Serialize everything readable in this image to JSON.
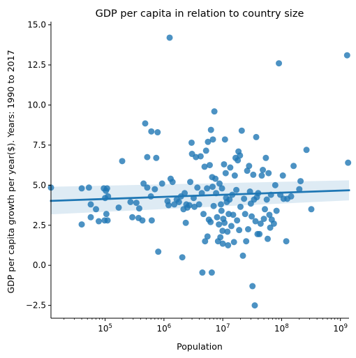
{
  "chart_data": {
    "type": "scatter",
    "title": "GDP per capita in relation to country size",
    "xlabel": "Population",
    "ylabel": "GDP per capita growth per year($). Years: 1990 to 2017",
    "x_scale": "log",
    "xlim": [
      12000,
      1400000000
    ],
    "ylim": [
      -3.3,
      15.2
    ],
    "yticks": [
      -2.5,
      0.0,
      2.5,
      5.0,
      7.5,
      10.0,
      12.5,
      15.0
    ],
    "ytick_labels": [
      "−2.5",
      "0.0",
      "2.5",
      "5.0",
      "7.5",
      "10.0",
      "12.5",
      "15.0"
    ],
    "xticks": [
      100000,
      1000000,
      10000000,
      100000000,
      1000000000
    ],
    "xtick_labels": [
      "10^5",
      "10^6",
      "10^7",
      "10^8",
      "10^9"
    ],
    "grid": false,
    "colors": {
      "points": "#1f77b4",
      "line": "#1f77b4",
      "band": "#1f77b4"
    },
    "regression": {
      "x": [
        12000,
        1400000000
      ],
      "y": [
        4.02,
        4.68
      ],
      "ci_low": [
        3.18,
        4.05
      ],
      "ci_high": [
        4.9,
        5.3
      ]
    },
    "points": [
      {
        "x": 12000,
        "y": 4.85
      },
      {
        "x": 40000,
        "y": 4.8
      },
      {
        "x": 40000,
        "y": 2.55
      },
      {
        "x": 53000,
        "y": 4.85
      },
      {
        "x": 57000,
        "y": 3.8
      },
      {
        "x": 57000,
        "y": 3.0
      },
      {
        "x": 70000,
        "y": 3.5
      },
      {
        "x": 78000,
        "y": 2.75
      },
      {
        "x": 95000,
        "y": 4.8
      },
      {
        "x": 98000,
        "y": 2.8
      },
      {
        "x": 100000,
        "y": 4.2
      },
      {
        "x": 103000,
        "y": 4.65
      },
      {
        "x": 105000,
        "y": 3.2
      },
      {
        "x": 108000,
        "y": 4.8
      },
      {
        "x": 112000,
        "y": 4.3
      },
      {
        "x": 110000,
        "y": 2.8
      },
      {
        "x": 170000,
        "y": 3.6
      },
      {
        "x": 195000,
        "y": 6.5
      },
      {
        "x": 270000,
        "y": 3.95
      },
      {
        "x": 290000,
        "y": 3.0
      },
      {
        "x": 340000,
        "y": 3.9
      },
      {
        "x": 370000,
        "y": 2.95
      },
      {
        "x": 380000,
        "y": 3.55
      },
      {
        "x": 430000,
        "y": 2.8
      },
      {
        "x": 450000,
        "y": 5.1
      },
      {
        "x": 480000,
        "y": 8.85
      },
      {
        "x": 520000,
        "y": 4.85
      },
      {
        "x": 520000,
        "y": 6.75
      },
      {
        "x": 600000,
        "y": 4.3
      },
      {
        "x": 610000,
        "y": 8.35
      },
      {
        "x": 620000,
        "y": 2.8
      },
      {
        "x": 700000,
        "y": 4.75
      },
      {
        "x": 740000,
        "y": 6.7
      },
      {
        "x": 780000,
        "y": 8.3
      },
      {
        "x": 800000,
        "y": 0.85
      },
      {
        "x": 930000,
        "y": 5.1
      },
      {
        "x": 1150000,
        "y": 4.0
      },
      {
        "x": 1200000,
        "y": 3.75
      },
      {
        "x": 1250000,
        "y": 14.2
      },
      {
        "x": 1300000,
        "y": 5.4
      },
      {
        "x": 1400000,
        "y": 5.2
      },
      {
        "x": 1500000,
        "y": 3.8
      },
      {
        "x": 1650000,
        "y": 4.1
      },
      {
        "x": 1800000,
        "y": 3.95
      },
      {
        "x": 1950000,
        "y": 4.3
      },
      {
        "x": 2050000,
        "y": 0.5
      },
      {
        "x": 2150000,
        "y": 3.5
      },
      {
        "x": 2250000,
        "y": 4.5
      },
      {
        "x": 2350000,
        "y": 2.65
      },
      {
        "x": 2400000,
        "y": 3.8
      },
      {
        "x": 2500000,
        "y": 3.6
      },
      {
        "x": 2700000,
        "y": 3.75
      },
      {
        "x": 2800000,
        "y": 5.2
      },
      {
        "x": 2950000,
        "y": 7.65
      },
      {
        "x": 3000000,
        "y": 6.95
      },
      {
        "x": 3200000,
        "y": 4.2
      },
      {
        "x": 3300000,
        "y": 3.65
      },
      {
        "x": 3500000,
        "y": 6.75
      },
      {
        "x": 3700000,
        "y": 4.85
      },
      {
        "x": 3950000,
        "y": 3.8
      },
      {
        "x": 4200000,
        "y": 6.8
      },
      {
        "x": 4400000,
        "y": 4.5
      },
      {
        "x": 4500000,
        "y": -0.45
      },
      {
        "x": 4700000,
        "y": 3.2
      },
      {
        "x": 4900000,
        "y": 6.15
      },
      {
        "x": 5000000,
        "y": 1.5
      },
      {
        "x": 5200000,
        "y": 7.15
      },
      {
        "x": 5400000,
        "y": 4.8
      },
      {
        "x": 5500000,
        "y": 1.8
      },
      {
        "x": 5600000,
        "y": 7.7
      },
      {
        "x": 5800000,
        "y": 2.85
      },
      {
        "x": 6000000,
        "y": 6.25
      },
      {
        "x": 6200000,
        "y": 2.7
      },
      {
        "x": 6300000,
        "y": 8.45
      },
      {
        "x": 6500000,
        "y": -0.45
      },
      {
        "x": 6600000,
        "y": 5.5
      },
      {
        "x": 6700000,
        "y": 4.9
      },
      {
        "x": 6800000,
        "y": 7.85
      },
      {
        "x": 7000000,
        "y": 3.7
      },
      {
        "x": 7200000,
        "y": 9.6
      },
      {
        "x": 7500000,
        "y": 5.4
      },
      {
        "x": 7700000,
        "y": 4.5
      },
      {
        "x": 8000000,
        "y": 3.0
      },
      {
        "x": 8300000,
        "y": 1.5
      },
      {
        "x": 8600000,
        "y": 2.55
      },
      {
        "x": 8800000,
        "y": 5.1
      },
      {
        "x": 9100000,
        "y": 1.75
      },
      {
        "x": 9300000,
        "y": 3.8
      },
      {
        "x": 9500000,
        "y": 3.4
      },
      {
        "x": 9700000,
        "y": 4.8
      },
      {
        "x": 9900000,
        "y": 2.15
      },
      {
        "x": 10000000,
        "y": 1.35
      },
      {
        "x": 10200000,
        "y": 2.9
      },
      {
        "x": 10500000,
        "y": 6.3
      },
      {
        "x": 10700000,
        "y": 2.65
      },
      {
        "x": 10900000,
        "y": 7.85
      },
      {
        "x": 11200000,
        "y": 5.75
      },
      {
        "x": 11400000,
        "y": 4.2
      },
      {
        "x": 11700000,
        "y": 3.95
      },
      {
        "x": 12000000,
        "y": 2.1
      },
      {
        "x": 12300000,
        "y": 1.25
      },
      {
        "x": 12600000,
        "y": 3.2
      },
      {
        "x": 13000000,
        "y": 4.1
      },
      {
        "x": 13400000,
        "y": 6.1
      },
      {
        "x": 14000000,
        "y": 2.45
      },
      {
        "x": 14500000,
        "y": 4.4
      },
      {
        "x": 15000000,
        "y": 3.15
      },
      {
        "x": 15500000,
        "y": 1.45
      },
      {
        "x": 16000000,
        "y": 5.6
      },
      {
        "x": 16500000,
        "y": 6.7
      },
      {
        "x": 17000000,
        "y": 4.7
      },
      {
        "x": 17500000,
        "y": 2.8
      },
      {
        "x": 18000000,
        "y": 6.55
      },
      {
        "x": 18500000,
        "y": 7.1
      },
      {
        "x": 19000000,
        "y": 2.2
      },
      {
        "x": 19600000,
        "y": 6.85
      },
      {
        "x": 20000000,
        "y": 3.65
      },
      {
        "x": 21000000,
        "y": 8.4
      },
      {
        "x": 22000000,
        "y": 0.6
      },
      {
        "x": 23000000,
        "y": 4.15
      },
      {
        "x": 24000000,
        "y": 3.2
      },
      {
        "x": 25000000,
        "y": 1.5
      },
      {
        "x": 26000000,
        "y": 5.9
      },
      {
        "x": 27000000,
        "y": 2.25
      },
      {
        "x": 28000000,
        "y": 6.2
      },
      {
        "x": 29000000,
        "y": 4.6
      },
      {
        "x": 30000000,
        "y": 3.85
      },
      {
        "x": 31000000,
        "y": 3.05
      },
      {
        "x": 32000000,
        "y": -1.3
      },
      {
        "x": 33000000,
        "y": 5.65
      },
      {
        "x": 34000000,
        "y": 4.1
      },
      {
        "x": 35000000,
        "y": -2.5
      },
      {
        "x": 36000000,
        "y": 2.75
      },
      {
        "x": 37000000,
        "y": 8.0
      },
      {
        "x": 38000000,
        "y": 4.25
      },
      {
        "x": 39000000,
        "y": 1.95
      },
      {
        "x": 40000000,
        "y": 4.5
      },
      {
        "x": 42000000,
        "y": 1.95
      },
      {
        "x": 44000000,
        "y": 2.6
      },
      {
        "x": 46000000,
        "y": 5.6
      },
      {
        "x": 48000000,
        "y": 5.95
      },
      {
        "x": 50000000,
        "y": 2.9
      },
      {
        "x": 52000000,
        "y": 3.5
      },
      {
        "x": 54000000,
        "y": 6.7
      },
      {
        "x": 56000000,
        "y": 4.1
      },
      {
        "x": 58000000,
        "y": 1.65
      },
      {
        "x": 60000000,
        "y": 5.75
      },
      {
        "x": 62000000,
        "y": 3.15
      },
      {
        "x": 64000000,
        "y": 2.35
      },
      {
        "x": 66000000,
        "y": 4.4
      },
      {
        "x": 68000000,
        "y": 2.85
      },
      {
        "x": 74000000,
        "y": 2.6
      },
      {
        "x": 78000000,
        "y": 5.0
      },
      {
        "x": 82000000,
        "y": 3.4
      },
      {
        "x": 90000000,
        "y": 12.6
      },
      {
        "x": 95000000,
        "y": 4.4
      },
      {
        "x": 105000000,
        "y": 5.6
      },
      {
        "x": 108000000,
        "y": 4.15
      },
      {
        "x": 120000000,
        "y": 1.5
      },
      {
        "x": 125000000,
        "y": 4.15
      },
      {
        "x": 145000000,
        "y": 4.3
      },
      {
        "x": 160000000,
        "y": 6.2
      },
      {
        "x": 200000000,
        "y": 4.75
      },
      {
        "x": 210000000,
        "y": 5.25
      },
      {
        "x": 265000000,
        "y": 7.2
      },
      {
        "x": 320000000,
        "y": 3.5
      },
      {
        "x": 1300000000,
        "y": 13.1
      },
      {
        "x": 1350000000,
        "y": 6.4
      }
    ]
  }
}
